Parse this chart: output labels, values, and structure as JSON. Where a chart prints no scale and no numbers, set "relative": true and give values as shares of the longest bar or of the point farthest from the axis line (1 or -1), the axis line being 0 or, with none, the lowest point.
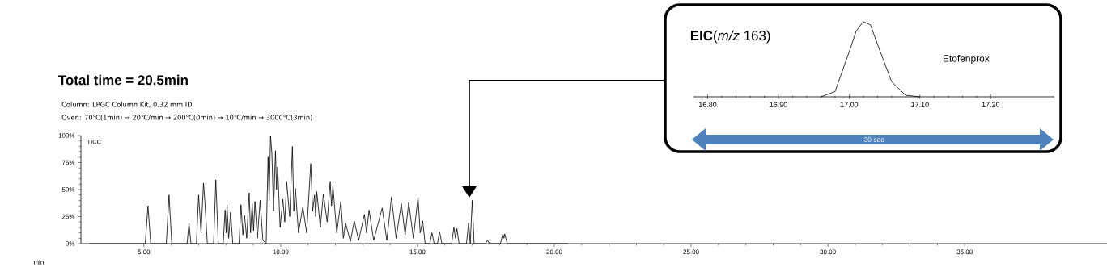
{
  "chart_data": [
    {
      "type": "line",
      "title": "Total time = 20.5min",
      "subtitle": "Column: LPGC Column Kit, 0.32 mm ID",
      "annotations": [
        "Oven: 70℃(1min) → 20℃/min → 200℃(0min) → 10℃/min → 3000℃(3min)"
      ],
      "xlabel": "min.",
      "xlim": [
        2.7,
        40.2
      ],
      "ylim": [
        0,
        100
      ],
      "xticks": [
        {
          "value": 5,
          "label": "5.00"
        },
        {
          "value": 10,
          "label": "10.00"
        },
        {
          "value": 15,
          "label": "15.00"
        },
        {
          "value": 20,
          "label": "20.00"
        },
        {
          "value": 25,
          "label": "25.00"
        },
        {
          "value": 30,
          "label": "30.00"
        },
        {
          "value": 35,
          "label": "35.00"
        }
      ],
      "yticks": [
        {
          "value": 0,
          "label": "0%"
        },
        {
          "value": 25,
          "label": "25%"
        },
        {
          "value": 50,
          "label": "50%"
        },
        {
          "value": 75,
          "label": "75%"
        },
        {
          "value": 100,
          "label": "100%"
        }
      ],
      "series": [
        {
          "name": "TICC",
          "color": "#000000",
          "x": [
            3.0,
            5.05,
            5.15,
            5.25,
            5.82,
            5.92,
            6.02,
            6.58,
            6.65,
            6.72,
            6.92,
            7.0,
            7.09,
            7.18,
            7.23,
            7.32,
            7.55,
            7.63,
            7.72,
            7.9,
            7.97,
            8.01,
            8.04,
            8.1,
            8.17,
            8.25,
            8.48,
            8.55,
            8.62,
            8.68,
            8.76,
            8.85,
            8.9,
            8.96,
            9.01,
            9.06,
            9.15,
            9.25,
            9.35,
            9.47,
            9.54,
            9.58,
            9.63,
            9.68,
            9.74,
            9.81,
            9.85,
            9.89,
            9.98,
            10.08,
            10.15,
            10.22,
            10.33,
            10.43,
            10.48,
            10.54,
            10.65,
            10.81,
            10.95,
            11.1,
            11.17,
            11.24,
            11.28,
            11.32,
            11.45,
            11.56,
            11.7,
            11.81,
            11.86,
            11.91,
            12.05,
            12.2,
            12.29,
            12.37,
            12.55,
            12.69,
            12.85,
            13.06,
            13.14,
            13.23,
            13.4,
            13.71,
            13.88,
            14.05,
            14.22,
            14.41,
            14.55,
            14.68,
            14.85,
            15.02,
            15.1,
            15.19,
            15.28,
            15.45,
            15.53,
            15.61,
            15.73,
            15.81,
            15.89,
            16.25,
            16.33,
            16.39,
            16.44,
            16.52,
            16.79,
            16.87,
            16.93,
            17.0,
            17.07,
            17.48,
            17.56,
            17.64,
            18.03,
            18.12,
            18.16,
            18.19,
            18.28,
            20.5
          ],
          "values": [
            0,
            0,
            35,
            0,
            0,
            45,
            0,
            0,
            19,
            0,
            0,
            45,
            10,
            56,
            39,
            0,
            0,
            59,
            0,
            0,
            31,
            10,
            36,
            5,
            29,
            0,
            0,
            36,
            8,
            26,
            5,
            47,
            10,
            37,
            12,
            39,
            5,
            40,
            3,
            0,
            80,
            40,
            100,
            83,
            30,
            86,
            50,
            71,
            15,
            41,
            20,
            57,
            25,
            90,
            30,
            51,
            10,
            34,
            10,
            74,
            30,
            45,
            25,
            48,
            15,
            46,
            20,
            57,
            35,
            53,
            10,
            39,
            5,
            19,
            2,
            21,
            3,
            27,
            10,
            31,
            3,
            33,
            3,
            43,
            5,
            37,
            8,
            38,
            5,
            43,
            10,
            21,
            0,
            0,
            10,
            0,
            0,
            11,
            0,
            0,
            15,
            5,
            14,
            0,
            0,
            19,
            0,
            40,
            0,
            0,
            3,
            0,
            0,
            9,
            5,
            9,
            0,
            0
          ]
        }
      ]
    },
    {
      "type": "line",
      "title": "**EIC**(*m/z* 163)",
      "annotations": [
        "Etofenprox",
        "30 sec"
      ],
      "relative": true,
      "xlim": [
        16.78,
        17.29
      ],
      "xticks": [
        {
          "value": 16.8,
          "label": "16.80"
        },
        {
          "value": 16.9,
          "label": "16.90"
        },
        {
          "value": 17.0,
          "label": "17.00"
        },
        {
          "value": 17.1,
          "label": "17.10"
        },
        {
          "value": 17.2,
          "label": "17.20"
        }
      ],
      "series": [
        {
          "color": "#000000",
          "x": [
            16.96,
            16.98,
            17.0,
            17.01,
            17.02,
            17.03,
            17.04,
            17.06,
            17.08,
            17.1
          ],
          "values": [
            0,
            0.07,
            0.6,
            0.88,
            1,
            0.96,
            0.7,
            0.2,
            0.02,
            0
          ]
        }
      ]
    }
  ]
}
